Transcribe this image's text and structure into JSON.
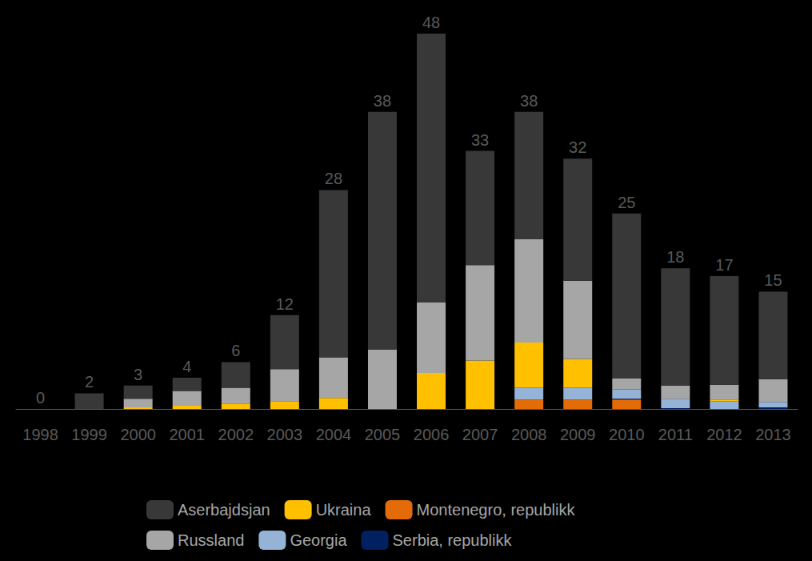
{
  "chart_data": {
    "type": "bar",
    "stacked": true,
    "tick_labels": "x",
    "categories": [
      "1998",
      "1999",
      "2000",
      "2001",
      "2002",
      "2003",
      "2004",
      "2005",
      "2006",
      "2007",
      "2008",
      "2009",
      "2010",
      "2011",
      "2012",
      "2013"
    ],
    "ylim": [
      0,
      48
    ],
    "totals": [
      0,
      2,
      3,
      4,
      6,
      12,
      28,
      38,
      48,
      33,
      38,
      32,
      25,
      18,
      17,
      15
    ],
    "series": [
      {
        "name": "Aserbajdsjan",
        "color": "#383838",
        "values": [
          0,
          2,
          1.7,
          1.7,
          3.3,
          6.9,
          21.4,
          30.4,
          34.4,
          14.6,
          16.3,
          15.6,
          21.1,
          15.0,
          13.9,
          11.2
        ]
      },
      {
        "name": "Ukraina",
        "color": "#ffc000",
        "values": [
          0,
          0,
          0.2,
          0.4,
          0.7,
          1.0,
          1.4,
          0,
          4.6,
          6.2,
          5.8,
          3.7,
          0,
          0,
          0.2,
          0
        ]
      },
      {
        "name": "Montenegro, republikk",
        "color": "#e36c09",
        "values": [
          0,
          0,
          0,
          0,
          0,
          0,
          0,
          0,
          0,
          0,
          1.2,
          1.2,
          1.2,
          0,
          0,
          0
        ]
      },
      {
        "name": "Russland",
        "color": "#a6a6a6",
        "values": [
          0,
          0,
          1.1,
          1.9,
          2.0,
          4.1,
          5.2,
          7.6,
          9.0,
          12.2,
          13.2,
          10.0,
          1.4,
          1.7,
          1.9,
          2.9
        ]
      },
      {
        "name": "Georgia",
        "color": "#95b3d7",
        "values": [
          0,
          0,
          0,
          0,
          0,
          0,
          0,
          0,
          0,
          0,
          1.5,
          1.5,
          1.2,
          1.2,
          1.0,
          0.7
        ]
      },
      {
        "name": "Serbia, republikk",
        "color": "#002060",
        "values": [
          0,
          0,
          0,
          0,
          0,
          0,
          0,
          0,
          0,
          0,
          0,
          0,
          0.1,
          0.1,
          0,
          0.2
        ]
      }
    ]
  }
}
